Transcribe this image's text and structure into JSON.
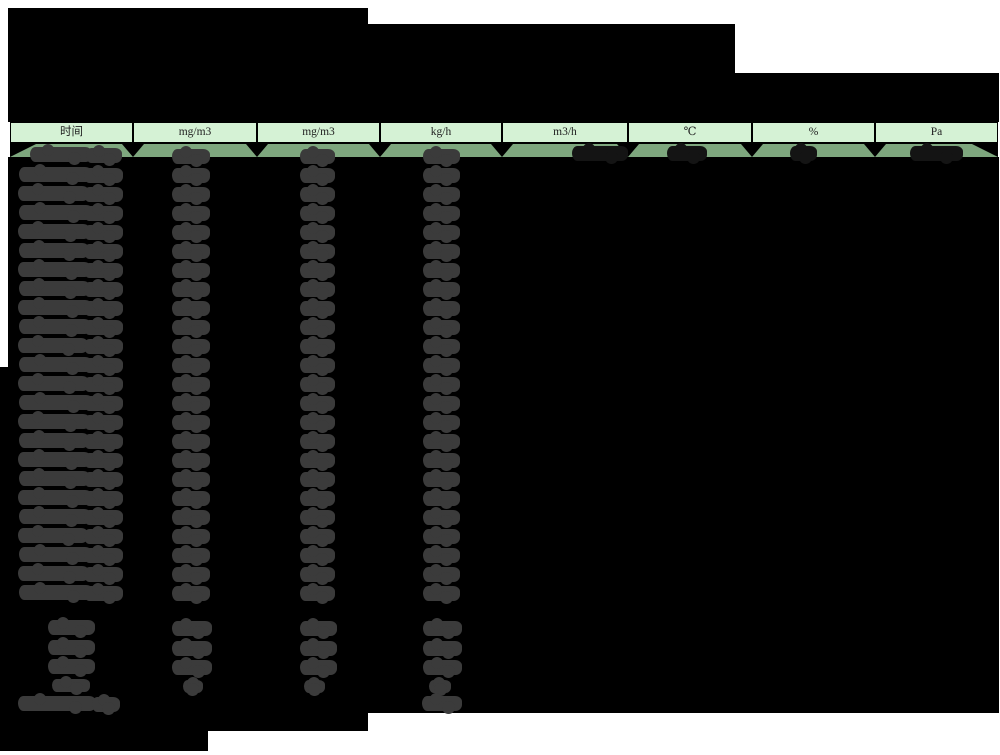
{
  "document": {
    "type": "redacted-monitoring-report-table",
    "values_redacted": true,
    "page_background": "#ffffff"
  },
  "table": {
    "columns": [
      {
        "label": "时间"
      },
      {
        "label": "mg/m3"
      },
      {
        "label": "mg/m3"
      },
      {
        "label": "kg/h"
      },
      {
        "label": "m3/h"
      },
      {
        "label": "℃"
      },
      {
        "label": "%"
      },
      {
        "label": "Pa"
      }
    ],
    "main_data_rows": 24,
    "summary_rows": 4,
    "total_row_count": 1,
    "first_data_row_has_all_columns": true,
    "other_rows_columns_with_values": 4,
    "colors": {
      "header_fill": "#d5f2d5",
      "first_row_fill": "#7EA77E",
      "redaction_black": "#000000",
      "blob_gray": "#3b3b3b",
      "first_row_right_blob": "#141414"
    }
  }
}
